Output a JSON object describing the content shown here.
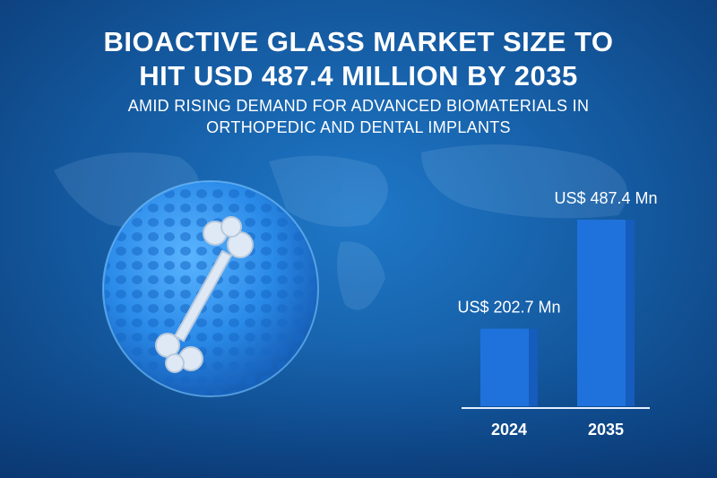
{
  "chart_data": {
    "type": "bar",
    "title": "BIOACTIVE GLASS MARKET SIZE TO HIT USD 487.4 MILLION BY 2035",
    "subtitle": "AMID RISING DEMAND FOR ADVANCED BIOMATERIALS IN ORTHOPEDIC AND DENTAL IMPLANTS",
    "categories": [
      "2024",
      "2035"
    ],
    "values": [
      202.7,
      487.4
    ],
    "value_labels": [
      "US$ 202.7 Mn",
      "US$ 487.4 Mn"
    ],
    "color": "#1f72dc"
  }
}
